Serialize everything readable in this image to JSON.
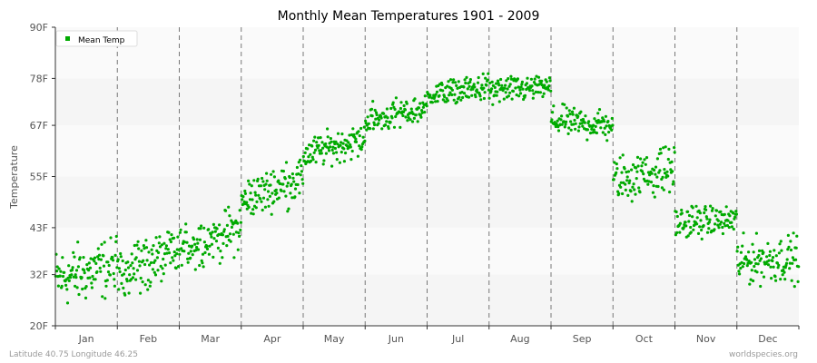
{
  "chart_data": {
    "type": "scatter",
    "title": "Monthly Mean Temperatures 1901 - 2009",
    "ylabel": "Temperature",
    "xlabel": "",
    "y_ticks": [
      "20F",
      "32F",
      "43F",
      "55F",
      "67F",
      "78F",
      "90F"
    ],
    "y_tick_values": [
      20,
      32,
      43,
      55,
      67,
      78,
      90
    ],
    "ylim": [
      20,
      90
    ],
    "categories": [
      "Jan",
      "Feb",
      "Mar",
      "Apr",
      "May",
      "Jun",
      "Jul",
      "Aug",
      "Sep",
      "Oct",
      "Nov",
      "Dec"
    ],
    "legend": {
      "placement": "top-left",
      "entries": [
        "Mean Temp"
      ]
    },
    "series": [
      {
        "name": "Mean Temp",
        "color": "#00aa00",
        "points_per_month": 109,
        "monthly_ranges": [
          {
            "month": "Jan",
            "min": 23,
            "max": 41,
            "center_start": 31,
            "center_end": 34
          },
          {
            "month": "Feb",
            "min": 24,
            "max": 42,
            "center_start": 33,
            "center_end": 37
          },
          {
            "month": "Mar",
            "min": 33,
            "max": 48,
            "center_start": 38,
            "center_end": 43
          },
          {
            "month": "Apr",
            "min": 46,
            "max": 59,
            "center_start": 49,
            "center_end": 55
          },
          {
            "month": "May",
            "min": 57,
            "max": 67,
            "center_start": 60,
            "center_end": 64
          },
          {
            "month": "Jun",
            "min": 65,
            "max": 74,
            "center_start": 68,
            "center_end": 71
          },
          {
            "month": "Jul",
            "min": 72,
            "max": 80,
            "center_start": 74,
            "center_end": 76
          },
          {
            "month": "Aug",
            "min": 70,
            "max": 79,
            "center_start": 75,
            "center_end": 76
          },
          {
            "month": "Sep",
            "min": 63,
            "max": 72,
            "center_start": 68,
            "center_end": 67
          },
          {
            "month": "Oct",
            "min": 49,
            "max": 63,
            "center_start": 54,
            "center_end": 57
          },
          {
            "month": "Nov",
            "min": 39,
            "max": 49,
            "center_start": 44,
            "center_end": 45
          },
          {
            "month": "Dec",
            "min": 28,
            "max": 42,
            "center_start": 35,
            "center_end": 36
          }
        ]
      }
    ],
    "grid": true,
    "footer_left": "Latitude 40.75 Longitude 46.25",
    "footer_right": "worldspecies.org"
  }
}
